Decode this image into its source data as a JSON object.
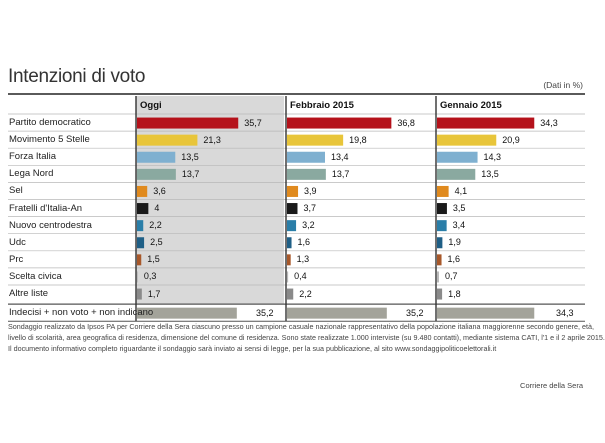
{
  "header": {
    "title": "Intenzioni di voto",
    "units": "(Dati in %)"
  },
  "chart_data": {
    "type": "bar",
    "orientation": "horizontal",
    "title": "Intenzioni di voto",
    "categories": [
      "Partito democratico",
      "Movimento 5 Stelle",
      "Forza Italia",
      "Lega Nord",
      "Sel",
      "Fratelli d'Italia-An",
      "Nuovo centrodestra",
      "Udc",
      "Prc",
      "Scelta civica",
      "Altre liste",
      "Indecisi + non voto + non indicano"
    ],
    "value_labels": [
      "35,7",
      "21,3",
      "13,5",
      "13,7",
      "3,6",
      "4",
      "2,2",
      "2,5",
      "1,5",
      "0,3",
      "1,7",
      "35,2"
    ],
    "series": [
      {
        "name": "Oggi",
        "values": [
          35.7,
          21.3,
          13.5,
          13.7,
          3.6,
          4,
          2.2,
          2.5,
          1.5,
          0.3,
          1.7,
          35.2
        ],
        "labels": [
          "35,7",
          "21,3",
          "13,5",
          "13,7",
          "3,6",
          "4",
          "2,2",
          "2,5",
          "1,5",
          "0,3",
          "1,7",
          "35,2"
        ]
      },
      {
        "name": "Febbraio 2015",
        "values": [
          36.8,
          19.8,
          13.4,
          13.7,
          3.9,
          3.7,
          3.2,
          1.6,
          1.3,
          0.4,
          2.2,
          35.2
        ],
        "labels": [
          "36,8",
          "19,8",
          "13,4",
          "13,7",
          "3,9",
          "3,7",
          "3,2",
          "1,6",
          "1,3",
          "0,4",
          "2,2",
          "35,2"
        ]
      },
      {
        "name": "Gennaio 2015",
        "values": [
          34.3,
          20.9,
          14.3,
          13.5,
          4.1,
          3.5,
          3.4,
          1.9,
          1.6,
          0.7,
          1.8,
          34.3
        ],
        "labels": [
          "34,3",
          "20,9",
          "14,3",
          "13,5",
          "4,1",
          "3,5",
          "3,4",
          "1,9",
          "1,6",
          "0,7",
          "1,8",
          "34,3"
        ]
      }
    ],
    "colors": [
      "#b5121b",
      "#e8c53a",
      "#7fb0d0",
      "#8aa9a0",
      "#e08a1e",
      "#1a1a1a",
      "#2a7ea8",
      "#1f5f86",
      "#a8582a",
      "#b9b9b9",
      "#8a8a8a",
      "#a3a39a"
    ],
    "xlim": [
      0,
      40
    ],
    "grid": false,
    "legend": "none"
  },
  "footer": {
    "notes": [
      "Sondaggio realizzato da Ipsos PA per Corriere della Sera ciascuno presso un campione casuale nazionale rappresentativo della popolazione italiana maggiorenne secondo genere, età,",
      "livello di scolarità, area geografica di residenza, dimensione del comune di residenza. Sono state realizzate 1.000 interviste (su 9.480 contatti), mediante sistema CATI, l'1 e il 2 aprile 2015.",
      "Il documento informativo completo riguardante il sondaggio sarà inviato ai sensi di legge, per la sua pubblicazione, al sito www.sondaggipoliticoelettorali.it"
    ],
    "source": "Corriere della Sera"
  }
}
